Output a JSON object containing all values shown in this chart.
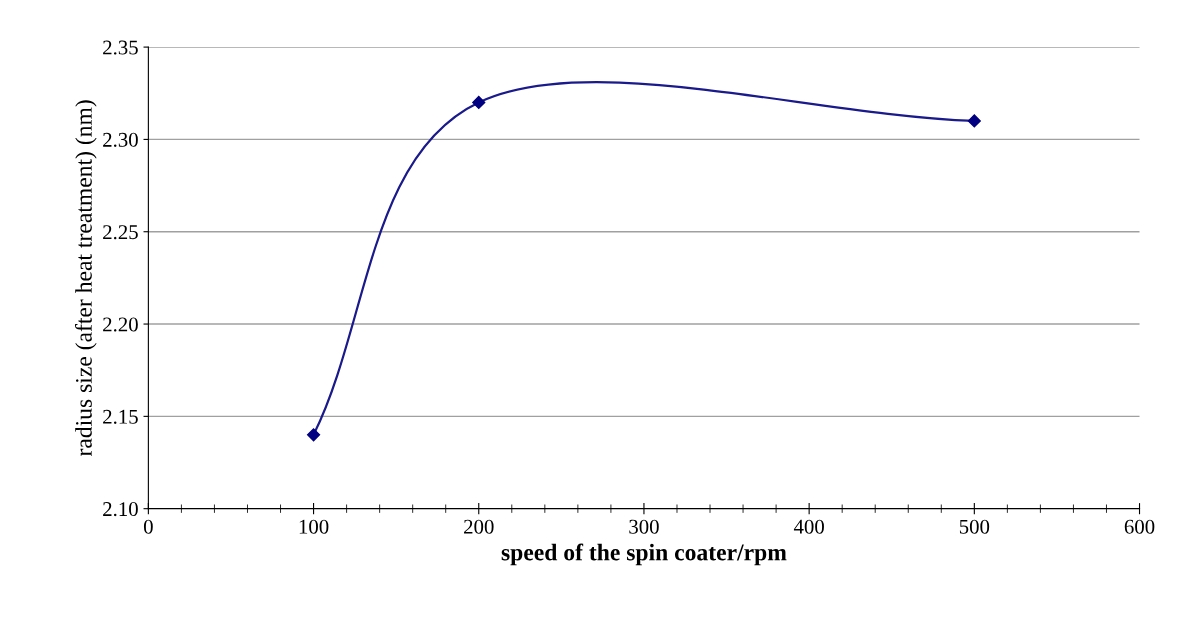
{
  "chart_data": {
    "type": "line",
    "xlabel": "speed of the spin coater/rpm",
    "ylabel": "radius size (after heat treatment) (nm)",
    "x": [
      100,
      200,
      500
    ],
    "series": [
      {
        "color": "#1a1a8c",
        "values": [
          2.14,
          2.32,
          2.31
        ]
      }
    ],
    "marker": "diamond",
    "line_style": "solid",
    "xlim": [
      0,
      600
    ],
    "xticks": [
      0,
      100,
      200,
      300,
      400,
      500,
      600
    ],
    "ylim": [
      2.1,
      2.35
    ],
    "yticks": [
      {
        "value": 2.1,
        "label": "2.10"
      },
      {
        "value": 2.15,
        "label": "2.15"
      },
      {
        "value": 2.2,
        "label": "2.20"
      },
      {
        "value": 2.25,
        "label": "2.25"
      },
      {
        "value": 2.3,
        "label": "2.30"
      },
      {
        "value": 2.35,
        "label": "2.35"
      }
    ],
    "grid": "y",
    "legend": false
  }
}
